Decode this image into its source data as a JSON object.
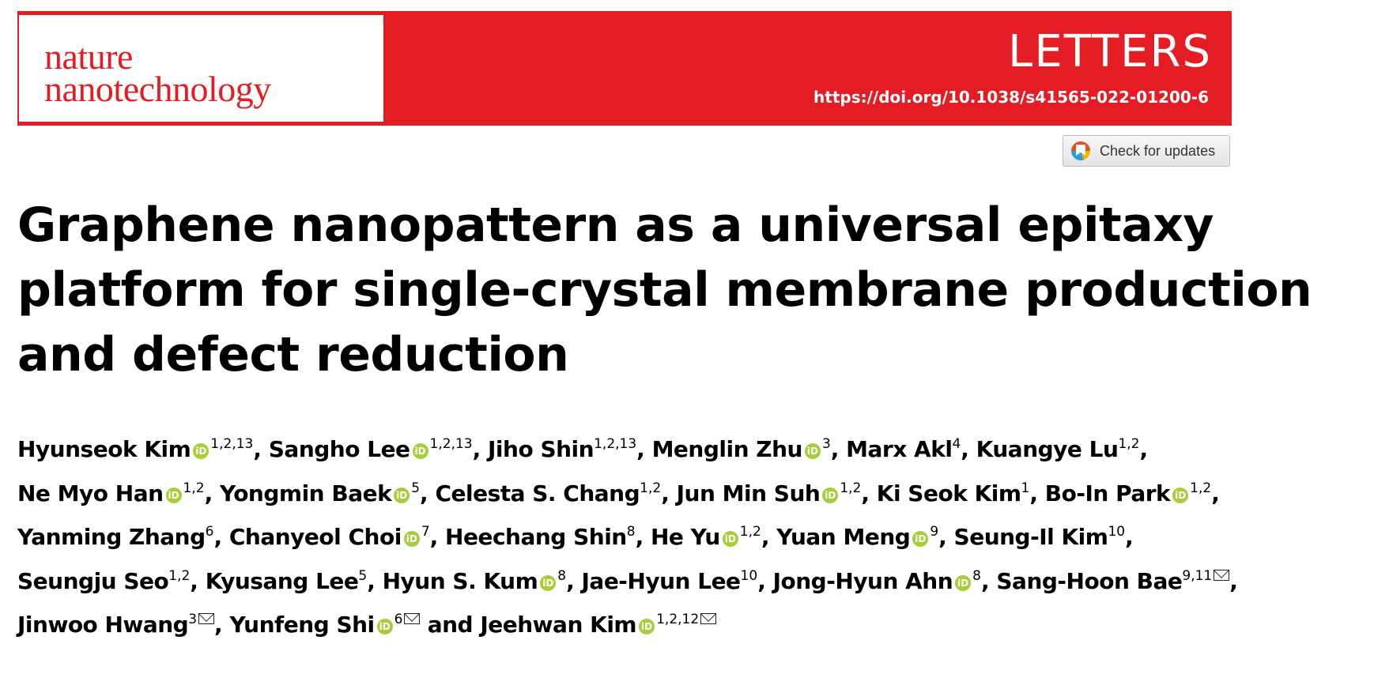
{
  "journal": {
    "line1": "nature",
    "line2": "nanotechnology"
  },
  "section": "LETTERS",
  "doi": "https://doi.org/10.1038/s41565-022-01200-6",
  "check_updates": "Check for updates",
  "title_lines": [
    "Graphene nanopattern as a universal epitaxy",
    "platform for single-crystal membrane production",
    "and defect reduction"
  ],
  "orcid_glyph": "iD",
  "colors": {
    "brand_red": "#e41d25",
    "orcid_green": "#a6ce39"
  },
  "author_lines": [
    [
      {
        "name": "Hyunseok Kim",
        "orcid": true,
        "aff": "1,2,13",
        "sep": ", "
      },
      {
        "name": "Sangho Lee",
        "orcid": true,
        "aff": "1,2,13",
        "sep": ", "
      },
      {
        "name": "Jiho Shin",
        "orcid": false,
        "aff": "1,2,13",
        "sep": ", "
      },
      {
        "name": "Menglin Zhu",
        "orcid": true,
        "aff": "3",
        "sep": ", "
      },
      {
        "name": "Marx Akl",
        "orcid": false,
        "aff": "4",
        "sep": ", "
      },
      {
        "name": "Kuangye Lu",
        "orcid": false,
        "aff": "1,2",
        "sep": ","
      }
    ],
    [
      {
        "name": "Ne Myo Han",
        "orcid": true,
        "aff": "1,2",
        "sep": ", "
      },
      {
        "name": "Yongmin Baek",
        "orcid": true,
        "aff": "5",
        "sep": ", "
      },
      {
        "name": "Celesta S. Chang",
        "orcid": false,
        "aff": "1,2",
        "sep": ", "
      },
      {
        "name": "Jun Min Suh",
        "orcid": true,
        "aff": "1,2",
        "sep": ", "
      },
      {
        "name": "Ki Seok Kim",
        "orcid": false,
        "aff": "1",
        "sep": ", "
      },
      {
        "name": "Bo-In Park",
        "orcid": true,
        "aff": "1,2",
        "sep": ","
      }
    ],
    [
      {
        "name": "Yanming Zhang",
        "orcid": false,
        "aff": "6",
        "sep": ", "
      },
      {
        "name": "Chanyeol Choi",
        "orcid": true,
        "aff": "7",
        "sep": ", "
      },
      {
        "name": "Heechang Shin",
        "orcid": false,
        "aff": "8",
        "sep": ", "
      },
      {
        "name": "He Yu",
        "orcid": true,
        "aff": "1,2",
        "sep": ", "
      },
      {
        "name": "Yuan Meng",
        "orcid": true,
        "aff": "9",
        "sep": ", "
      },
      {
        "name": "Seung-Il Kim",
        "orcid": false,
        "aff": "10",
        "sep": ","
      }
    ],
    [
      {
        "name": "Seungju Seo",
        "orcid": false,
        "aff": "1,2",
        "sep": ", "
      },
      {
        "name": "Kyusang Lee",
        "orcid": false,
        "aff": "5",
        "sep": ", "
      },
      {
        "name": "Hyun S. Kum",
        "orcid": true,
        "aff": "8",
        "sep": ", "
      },
      {
        "name": "Jae-Hyun Lee",
        "orcid": false,
        "aff": "10",
        "sep": ", "
      },
      {
        "name": "Jong-Hyun Ahn",
        "orcid": true,
        "aff": "8",
        "sep": ", "
      },
      {
        "name": "Sang-Hoon Bae",
        "orcid": false,
        "aff": "9,11",
        "mail": true,
        "sep": ","
      }
    ],
    [
      {
        "name": "Jinwoo Hwang",
        "orcid": false,
        "aff": "3",
        "mail": true,
        "sep": ", "
      },
      {
        "name": "Yunfeng Shi",
        "orcid": true,
        "aff": "6",
        "mail": true,
        "sep": " and "
      },
      {
        "name": "Jeehwan Kim",
        "orcid": true,
        "aff": "1,2,12",
        "mail": true,
        "sep": ""
      }
    ]
  ]
}
